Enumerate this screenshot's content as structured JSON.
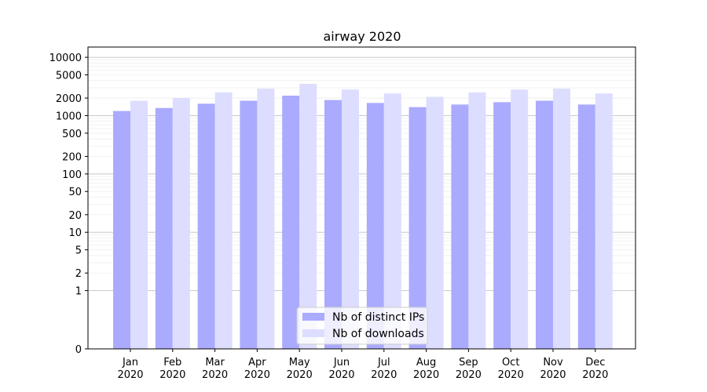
{
  "chart_data": {
    "type": "bar",
    "title": "airway 2020",
    "xlabel": "",
    "ylabel": "",
    "y_scale": "symlog",
    "ylim": [
      0,
      15000
    ],
    "y_ticks": [
      0,
      1,
      2,
      5,
      10,
      20,
      50,
      100,
      200,
      500,
      1000,
      2000,
      5000,
      10000
    ],
    "categories": [
      [
        "Jan",
        "2020"
      ],
      [
        "Feb",
        "2020"
      ],
      [
        "Mar",
        "2020"
      ],
      [
        "Apr",
        "2020"
      ],
      [
        "May",
        "2020"
      ],
      [
        "Jun",
        "2020"
      ],
      [
        "Jul",
        "2020"
      ],
      [
        "Aug",
        "2020"
      ],
      [
        "Sep",
        "2020"
      ],
      [
        "Oct",
        "2020"
      ],
      [
        "Nov",
        "2020"
      ],
      [
        "Dec",
        "2020"
      ]
    ],
    "series": [
      {
        "name": "Nb of distinct IPs",
        "color": "#aaaaff",
        "values": [
          1200,
          1350,
          1600,
          1800,
          2200,
          1850,
          1650,
          1400,
          1550,
          1700,
          1800,
          1550
        ]
      },
      {
        "name": "Nb of downloads",
        "color": "#ddddff",
        "values": [
          1800,
          2000,
          2500,
          2900,
          3500,
          2800,
          2400,
          2100,
          2500,
          2800,
          2900,
          2400
        ]
      }
    ],
    "grid": true,
    "legend_position": "bottom-center"
  }
}
